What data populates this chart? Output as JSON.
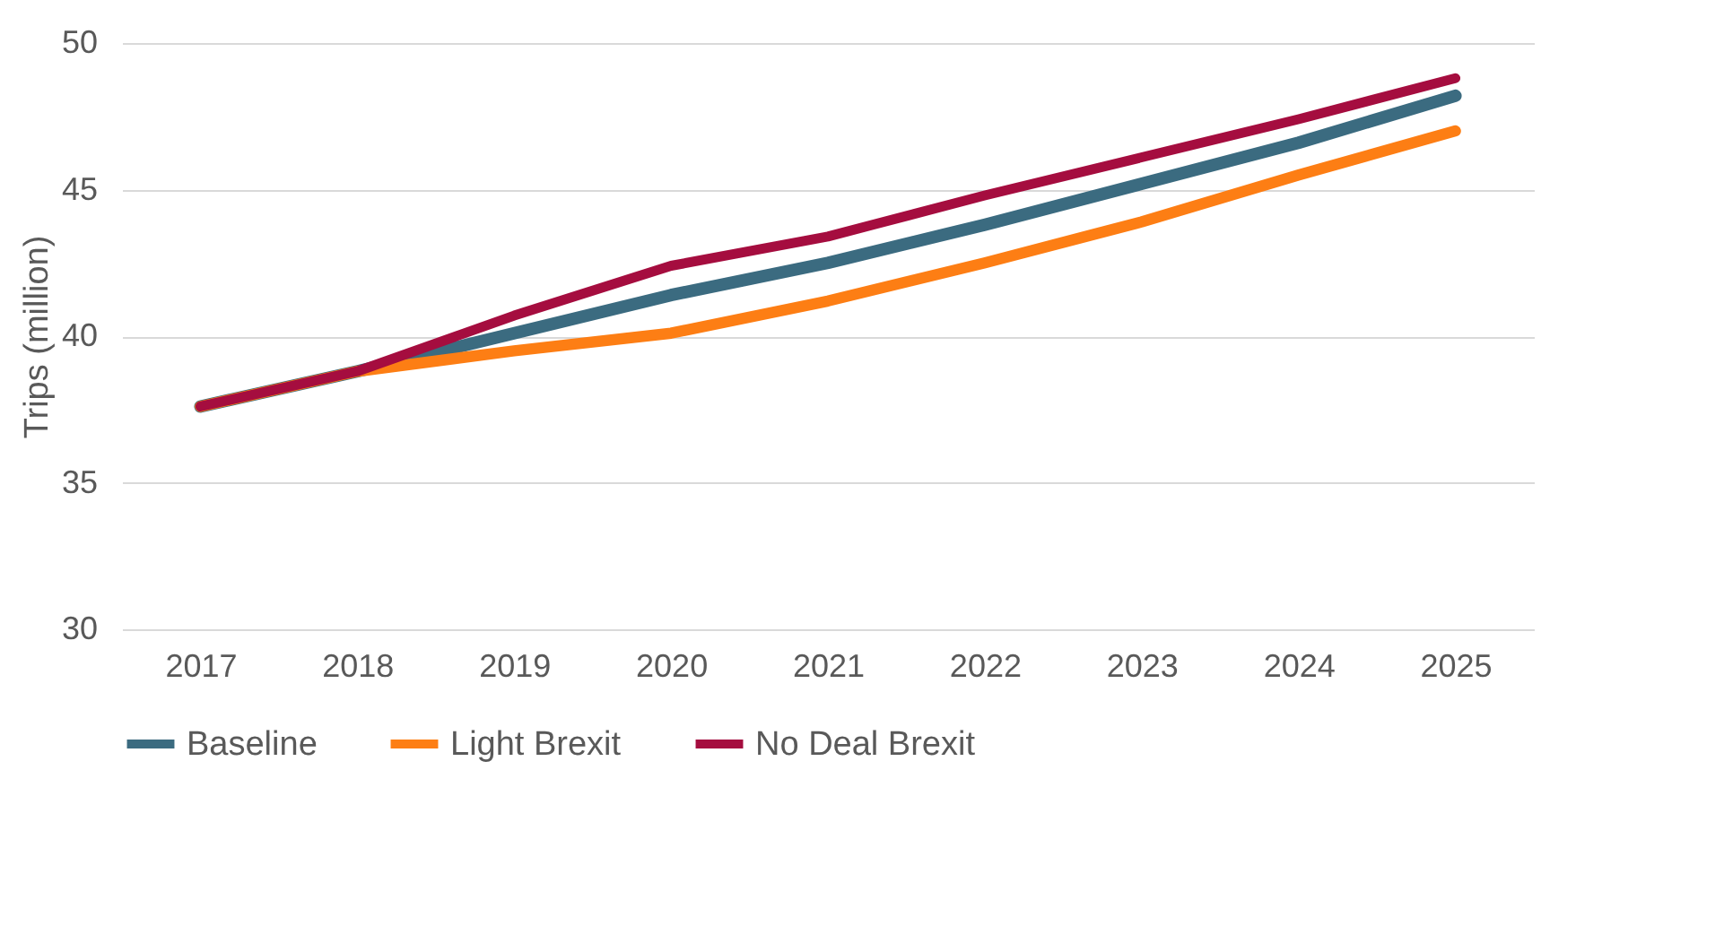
{
  "chart_data": {
    "type": "line",
    "ylabel": "Trips (million)",
    "categories": [
      "2017",
      "2018",
      "2019",
      "2020",
      "2021",
      "2022",
      "2023",
      "2024",
      "2025"
    ],
    "series": [
      {
        "name": "Baseline",
        "color": "#3b6b80",
        "values": [
          37.6,
          38.8,
          40.1,
          41.4,
          42.5,
          43.8,
          45.2,
          46.6,
          48.2
        ]
      },
      {
        "name": "Light Brexit",
        "color": "#fd7e14",
        "values": [
          37.6,
          38.8,
          39.5,
          40.1,
          41.2,
          42.5,
          43.9,
          45.5,
          47.0
        ]
      },
      {
        "name": "No Deal Brexit",
        "color": "#a50d3f",
        "values": [
          37.6,
          38.8,
          40.7,
          42.4,
          43.4,
          44.8,
          46.1,
          47.4,
          48.8
        ]
      }
    ],
    "ylim": [
      30,
      50
    ],
    "yticks": [
      30,
      35,
      40,
      45,
      50
    ],
    "grid": "y",
    "legend": "bottom",
    "marker": "none",
    "line_style": "solid"
  }
}
